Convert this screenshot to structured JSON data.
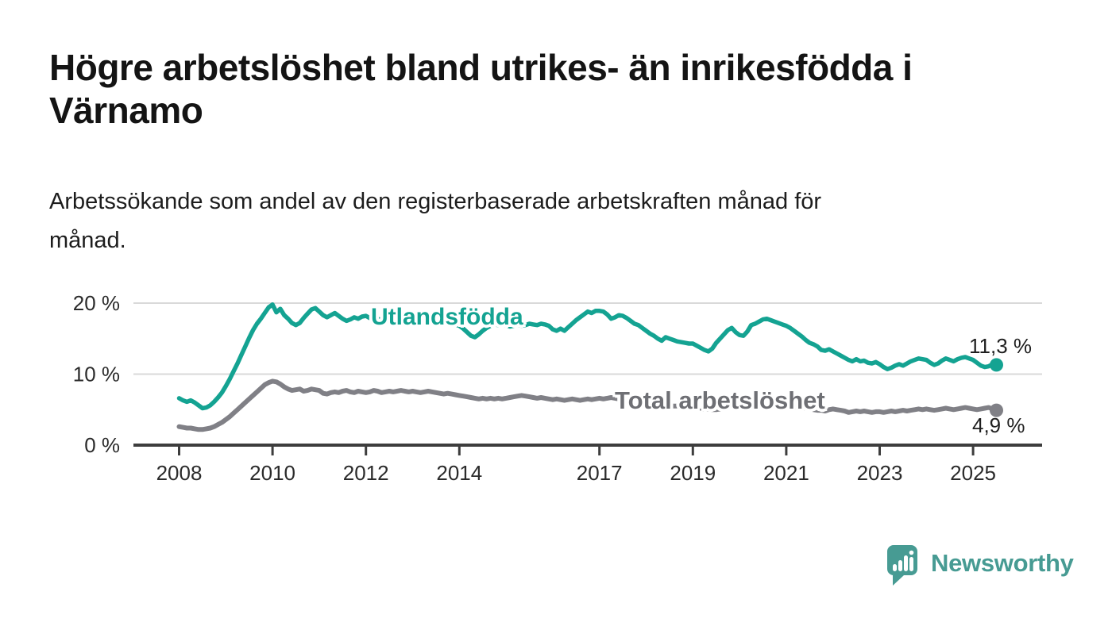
{
  "heading": {
    "title_lines": [
      "Högre arbetslöshet bland utrikes- än inrikesfödda i",
      "Värnamo"
    ],
    "subtitle_lines": [
      "Arbetssökande som andel av den registerbaserade arbetskraften månad för",
      "månad."
    ]
  },
  "chart_data": {
    "type": "line",
    "unit": "%",
    "x_start_year": 2008.0,
    "points_per_year": 12,
    "x_end_year": 2025.5,
    "ylim": [
      0,
      20
    ],
    "grid": "horizontal",
    "grid_color": "#d9d9d9",
    "axis_color": "#3d3d3d",
    "y_ticks": [
      {
        "value": 0,
        "label": "0 %"
      },
      {
        "value": 10,
        "label": "10 %"
      },
      {
        "value": 20,
        "label": "20 %"
      }
    ],
    "x_ticks": [
      {
        "value": 2008,
        "label": "2008"
      },
      {
        "value": 2010,
        "label": "2010"
      },
      {
        "value": 2012,
        "label": "2012"
      },
      {
        "value": 2014,
        "label": "2014"
      },
      {
        "value": 2017,
        "label": "2017"
      },
      {
        "value": 2019,
        "label": "2019"
      },
      {
        "value": 2021,
        "label": "2021"
      },
      {
        "value": 2023,
        "label": "2023"
      },
      {
        "value": 2025,
        "label": "2025"
      }
    ],
    "series": [
      {
        "name": "Utlandsfödda",
        "color": "#14a392",
        "end_label": "11,3 %",
        "end_value": 11.3,
        "values": [
          6.6,
          6.3,
          6.1,
          6.3,
          6.0,
          5.6,
          5.2,
          5.3,
          5.6,
          6.1,
          6.7,
          7.4,
          8.3,
          9.3,
          10.4,
          11.5,
          12.7,
          13.9,
          15.1,
          16.2,
          17.1,
          17.8,
          18.6,
          19.4,
          19.8,
          18.7,
          19.2,
          18.3,
          17.8,
          17.2,
          16.9,
          17.2,
          17.9,
          18.5,
          19.1,
          19.3,
          18.8,
          18.3,
          18.0,
          18.3,
          18.6,
          18.2,
          17.8,
          17.5,
          17.7,
          18.0,
          17.8,
          18.1,
          18.2,
          17.9,
          18.1,
          17.8,
          17.6,
          17.8,
          18.0,
          17.7,
          17.5,
          17.7,
          17.6,
          17.8,
          17.9,
          17.7,
          17.8,
          17.6,
          17.4,
          17.5,
          17.3,
          17.1,
          17.2,
          17.4,
          17.2,
          17.0,
          16.8,
          16.4,
          15.9,
          15.4,
          15.2,
          15.6,
          16.1,
          16.5,
          16.8,
          17.0,
          16.9,
          17.1,
          16.9,
          16.7,
          16.8,
          17.0,
          16.8,
          16.9,
          17.1,
          17.0,
          16.9,
          17.1,
          17.0,
          16.8,
          16.3,
          16.1,
          16.4,
          16.1,
          16.6,
          17.1,
          17.6,
          18.0,
          18.4,
          18.8,
          18.6,
          18.9,
          18.9,
          18.8,
          18.4,
          17.8,
          18.0,
          18.3,
          18.2,
          17.9,
          17.5,
          17.1,
          16.9,
          16.5,
          16.1,
          15.7,
          15.4,
          15.0,
          14.7,
          15.2,
          15.0,
          14.8,
          14.6,
          14.5,
          14.4,
          14.3,
          14.3,
          14.0,
          13.7,
          13.4,
          13.2,
          13.6,
          14.4,
          15.0,
          15.6,
          16.2,
          16.5,
          15.9,
          15.5,
          15.4,
          16.0,
          16.9,
          17.1,
          17.4,
          17.7,
          17.8,
          17.6,
          17.4,
          17.2,
          17.0,
          16.8,
          16.5,
          16.1,
          15.7,
          15.3,
          14.8,
          14.4,
          14.2,
          13.9,
          13.4,
          13.3,
          13.5,
          13.2,
          12.9,
          12.6,
          12.3,
          12.0,
          11.8,
          12.1,
          11.8,
          11.9,
          11.6,
          11.5,
          11.7,
          11.4,
          11.0,
          10.7,
          10.9,
          11.2,
          11.4,
          11.2,
          11.5,
          11.8,
          12.0,
          12.2,
          12.1,
          12.0,
          11.6,
          11.3,
          11.5,
          11.9,
          12.2,
          12.0,
          11.8,
          12.1,
          12.3,
          12.4,
          12.2,
          12.0,
          11.6,
          11.2,
          11.0,
          11.1,
          11.4,
          11.3
        ]
      },
      {
        "name": "Total arbetslöshet",
        "color": "#808086",
        "end_label": "4,9 %",
        "end_value": 4.9,
        "values": [
          2.6,
          2.5,
          2.4,
          2.4,
          2.3,
          2.2,
          2.2,
          2.3,
          2.4,
          2.6,
          2.9,
          3.2,
          3.6,
          4.0,
          4.5,
          5.0,
          5.5,
          6.0,
          6.5,
          7.0,
          7.5,
          8.0,
          8.5,
          8.8,
          9.0,
          8.9,
          8.6,
          8.2,
          7.9,
          7.7,
          7.8,
          7.9,
          7.6,
          7.7,
          7.9,
          7.8,
          7.7,
          7.3,
          7.2,
          7.4,
          7.5,
          7.4,
          7.6,
          7.7,
          7.5,
          7.4,
          7.6,
          7.5,
          7.4,
          7.5,
          7.7,
          7.6,
          7.4,
          7.5,
          7.6,
          7.5,
          7.6,
          7.7,
          7.6,
          7.5,
          7.6,
          7.5,
          7.4,
          7.5,
          7.6,
          7.5,
          7.4,
          7.3,
          7.2,
          7.3,
          7.2,
          7.1,
          7.0,
          6.9,
          6.8,
          6.7,
          6.6,
          6.5,
          6.6,
          6.5,
          6.6,
          6.5,
          6.6,
          6.5,
          6.6,
          6.7,
          6.8,
          6.9,
          7.0,
          6.9,
          6.8,
          6.7,
          6.6,
          6.7,
          6.6,
          6.5,
          6.4,
          6.5,
          6.4,
          6.3,
          6.4,
          6.5,
          6.4,
          6.3,
          6.4,
          6.5,
          6.4,
          6.5,
          6.6,
          6.5,
          6.6,
          6.7,
          6.6,
          6.5,
          6.6,
          6.5,
          6.4,
          6.5,
          6.4,
          6.3,
          6.2,
          6.1,
          6.0,
          5.9,
          5.8,
          5.7,
          5.6,
          5.5,
          5.5,
          5.4,
          5.4,
          5.3,
          5.3,
          5.2,
          5.2,
          5.1,
          5.1,
          5.0,
          5.0,
          5.1,
          5.2,
          5.3,
          5.4,
          5.5,
          5.6,
          5.7,
          5.9,
          6.1,
          6.2,
          6.3,
          6.3,
          6.2,
          6.1,
          6.0,
          5.9,
          5.8,
          5.7,
          5.6,
          5.5,
          5.4,
          5.3,
          5.2,
          5.1,
          5.0,
          4.9,
          4.9,
          4.8,
          5.0,
          5.1,
          5.0,
          4.9,
          4.8,
          4.6,
          4.7,
          4.8,
          4.7,
          4.8,
          4.7,
          4.6,
          4.7,
          4.7,
          4.6,
          4.7,
          4.8,
          4.7,
          4.8,
          4.9,
          4.8,
          4.9,
          5.0,
          5.1,
          5.0,
          5.1,
          5.0,
          4.9,
          5.0,
          5.1,
          5.2,
          5.1,
          5.0,
          5.1,
          5.2,
          5.3,
          5.2,
          5.1,
          5.0,
          5.1,
          5.2,
          5.3,
          5.1,
          4.9
        ]
      }
    ]
  },
  "branding": {
    "name": "Newsworthy",
    "color": "#479b93"
  }
}
